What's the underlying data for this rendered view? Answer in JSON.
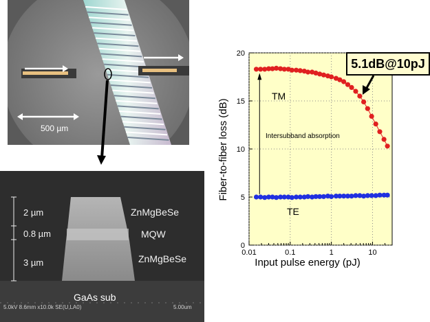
{
  "photo_top": {
    "scale_label": "500 µm"
  },
  "sem": {
    "layers": [
      {
        "thickness": "2 µm",
        "material": "ZnMgBeSe"
      },
      {
        "thickness": "0.8 µm",
        "material": "MQW"
      },
      {
        "thickness": "3 µm",
        "material": "ZnMgBeSe"
      }
    ],
    "substrate": "GaAs sub",
    "caption": "5.0kV 8.6mm x10.0k SE(U,LA0)",
    "scale": "5.00um"
  },
  "colors": {
    "plot_bg": "#ffffc8",
    "tm": "#e02020",
    "te": "#2030e0"
  },
  "chart_data": {
    "type": "scatter",
    "xlabel": "Input pulse energy (pJ)",
    "ylabel": "Fiber-to-fiber loss (dB)",
    "xscale": "log",
    "xlim": [
      0.01,
      30
    ],
    "ylim": [
      0,
      20
    ],
    "xticks": [
      0.01,
      0.1,
      1,
      10
    ],
    "xtick_labels": [
      "0.01",
      "0.1",
      "1",
      "10"
    ],
    "yticks": [
      0,
      5,
      10,
      15,
      20
    ],
    "ytick_labels": [
      "0",
      "5",
      "10",
      "15",
      "20"
    ],
    "series": [
      {
        "name": "TM",
        "x": [
          0.015,
          0.019,
          0.024,
          0.03,
          0.037,
          0.046,
          0.058,
          0.072,
          0.09,
          0.11,
          0.14,
          0.175,
          0.22,
          0.27,
          0.34,
          0.42,
          0.52,
          0.65,
          0.82,
          1.0,
          1.3,
          1.6,
          2.0,
          2.5,
          3.1,
          3.9,
          4.9,
          6.1,
          7.6,
          9.5,
          12,
          15,
          19,
          23
        ],
        "y": [
          18.3,
          18.3,
          18.3,
          18.35,
          18.35,
          18.4,
          18.35,
          18.3,
          18.3,
          18.2,
          18.2,
          18.15,
          18.1,
          18.0,
          18.0,
          17.9,
          17.8,
          17.7,
          17.6,
          17.5,
          17.35,
          17.2,
          17.0,
          16.7,
          16.4,
          16.0,
          15.5,
          14.9,
          14.2,
          13.4,
          12.6,
          11.8,
          11.0,
          10.3
        ]
      },
      {
        "name": "TE",
        "x": [
          0.015,
          0.019,
          0.024,
          0.03,
          0.037,
          0.046,
          0.058,
          0.072,
          0.09,
          0.11,
          0.14,
          0.175,
          0.22,
          0.27,
          0.34,
          0.42,
          0.52,
          0.65,
          0.82,
          1.0,
          1.3,
          1.6,
          2.0,
          2.5,
          3.1,
          3.9,
          4.9,
          6.1,
          7.6,
          9.5,
          12,
          15,
          19,
          23
        ],
        "y": [
          5.0,
          5.0,
          4.95,
          5.0,
          5.0,
          4.95,
          5.0,
          5.0,
          5.0,
          4.95,
          5.0,
          5.0,
          5.0,
          5.05,
          5.0,
          5.05,
          5.05,
          5.05,
          5.1,
          5.05,
          5.1,
          5.1,
          5.1,
          5.1,
          5.1,
          5.15,
          5.15,
          5.1,
          5.15,
          5.15,
          5.15,
          5.2,
          5.2,
          5.2
        ]
      }
    ],
    "annotations": {
      "tm_label": "TM",
      "te_label": "TE",
      "arrow_label": "Intersubband absorption",
      "callout": "5.1dB@10pJ"
    }
  }
}
